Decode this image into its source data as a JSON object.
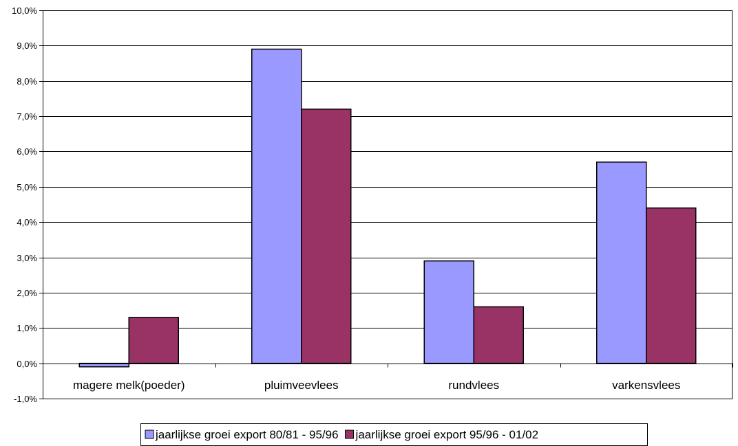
{
  "chart_data": {
    "type": "bar",
    "title": "",
    "xlabel": "",
    "ylabel": "",
    "categories": [
      "magere melk(poeder)",
      "pluimveevlees",
      "rundvlees",
      "varkensvlees"
    ],
    "series": [
      {
        "name": "jaarlijkse groei export 80/81 - 95/96",
        "color": "#9999ff",
        "values": [
          -0.1,
          8.9,
          2.9,
          5.7
        ]
      },
      {
        "name": "jaarlijkse groei export 95/96 - 01/02",
        "color": "#993366",
        "values": [
          1.3,
          7.2,
          1.6,
          4.4
        ]
      }
    ],
    "ylim": [
      -1,
      10
    ],
    "yticks": [
      -1,
      0,
      1,
      2,
      3,
      4,
      5,
      6,
      7,
      8,
      9,
      10
    ],
    "ytick_labels": [
      "-1,0%",
      "0,0%",
      "1,0%",
      "2,0%",
      "3,0%",
      "4,0%",
      "5,0%",
      "6,0%",
      "7,0%",
      "8,0%",
      "9,0%",
      "10,0%"
    ],
    "grid": true,
    "legend_position": "bottom"
  }
}
